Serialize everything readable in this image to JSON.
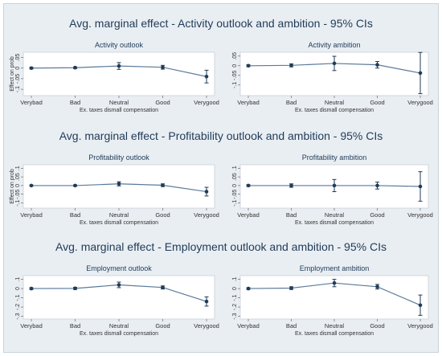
{
  "rows": [
    {
      "title": "Avg. marginal effect - Activity outlook and ambition - 95% CIs"
    },
    {
      "title": "Avg. marginal effect - Profitability outlook and ambition - 95% CIs"
    },
    {
      "title": "Avg. marginal effect - Employment outlook and ambition - 95% CIs"
    }
  ],
  "chart_data": [
    {
      "type": "line",
      "title": "Activity outlook",
      "categories": [
        "Verybad",
        "Bad",
        "Neutral",
        "Good",
        "Verygood"
      ],
      "xlabel": "Ex. taxes dismall compensation",
      "ylabel": "Effect on prob",
      "yticks": [
        ".05",
        "0",
        "-.05",
        "-.1"
      ],
      "ytick_values": [
        0.05,
        0,
        -0.05,
        -0.1
      ],
      "ylim": [
        -0.13,
        0.075
      ],
      "values": [
        0.0,
        0.002,
        0.01,
        0.004,
        -0.04
      ],
      "ci_low": [
        -0.004,
        -0.002,
        -0.006,
        -0.005,
        -0.07
      ],
      "ci_high": [
        0.004,
        0.006,
        0.026,
        0.013,
        -0.01
      ]
    },
    {
      "type": "line",
      "title": "Activity ambition",
      "categories": [
        "Verybad",
        "Bad",
        "Neutral",
        "Good",
        "Verygood"
      ],
      "xlabel": "Ex. taxes dismall compensation",
      "ylabel": "",
      "yticks": [
        ".05",
        "0",
        "-.05",
        "-.1"
      ],
      "ytick_values": [
        0.05,
        0,
        -0.05,
        -0.1
      ],
      "ylim": [
        -0.155,
        0.07
      ],
      "values": [
        0.0,
        0.002,
        0.012,
        0.005,
        -0.038
      ],
      "ci_low": [
        -0.005,
        -0.006,
        -0.025,
        -0.012,
        -0.145
      ],
      "ci_high": [
        0.005,
        0.01,
        0.049,
        0.022,
        0.069
      ]
    },
    {
      "type": "line",
      "title": "Profitability outlook",
      "categories": [
        "Verybad",
        "Bad",
        "Neutral",
        "Good",
        "Verygood"
      ],
      "xlabel": "Ex. taxes dismall compensation",
      "ylabel": "Effect on prob",
      "yticks": [
        ".1",
        ".05",
        "0",
        "-.05",
        "-.1"
      ],
      "ytick_values": [
        0.1,
        0.05,
        0,
        -0.05,
        -0.1
      ],
      "ylim": [
        -0.13,
        0.12
      ],
      "values": [
        0.0,
        0.0,
        0.01,
        0.002,
        -0.035
      ],
      "ci_low": [
        -0.003,
        -0.004,
        -0.002,
        -0.006,
        -0.06
      ],
      "ci_high": [
        0.003,
        0.004,
        0.022,
        0.01,
        -0.01
      ]
    },
    {
      "type": "line",
      "title": "Profitability ambition",
      "categories": [
        "Verybad",
        "Bad",
        "Neutral",
        "Good",
        "Verygood"
      ],
      "xlabel": "Ex. taxes dismall compensation",
      "ylabel": "",
      "yticks": [
        ".1",
        ".05",
        "0",
        "-.05",
        "-.1"
      ],
      "ytick_values": [
        0.1,
        0.05,
        0,
        -0.05,
        -0.1
      ],
      "ylim": [
        -0.13,
        0.12
      ],
      "values": [
        0.0,
        0.0,
        0.0,
        0.0,
        -0.005
      ],
      "ci_low": [
        -0.005,
        -0.01,
        -0.035,
        -0.02,
        -0.09
      ],
      "ci_high": [
        0.005,
        0.01,
        0.035,
        0.02,
        0.08
      ]
    },
    {
      "type": "line",
      "title": "Employment outlook",
      "categories": [
        "Verybad",
        "Bad",
        "Neutral",
        "Good",
        "Verygood"
      ],
      "xlabel": "Ex. taxes dismall compensation",
      "ylabel": "",
      "yticks": [
        ".1",
        "0",
        "-.1",
        "-.2",
        "-.3"
      ],
      "ytick_values": [
        0.1,
        0,
        -0.1,
        -0.2,
        -0.3
      ],
      "ylim": [
        -0.33,
        0.14
      ],
      "values": [
        0.0,
        0.002,
        0.04,
        0.012,
        -0.14
      ],
      "ci_low": [
        -0.01,
        -0.01,
        0.01,
        -0.005,
        -0.19
      ],
      "ci_high": [
        0.01,
        0.014,
        0.07,
        0.029,
        -0.09
      ]
    },
    {
      "type": "line",
      "title": "Employment ambition",
      "categories": [
        "Verybad",
        "Bad",
        "Neutral",
        "Good",
        "Verygood"
      ],
      "xlabel": "Ex. taxes dismall compensation",
      "ylabel": "",
      "yticks": [
        ".1",
        "0",
        "-.1",
        "-.2",
        "-.3"
      ],
      "ytick_values": [
        0.1,
        0,
        -0.1,
        -0.2,
        -0.3
      ],
      "ylim": [
        -0.33,
        0.14
      ],
      "values": [
        0.0,
        0.005,
        0.06,
        0.02,
        -0.18
      ],
      "ci_low": [
        -0.01,
        -0.01,
        0.02,
        -0.005,
        -0.29
      ],
      "ci_high": [
        0.01,
        0.02,
        0.1,
        0.045,
        -0.07
      ]
    }
  ]
}
